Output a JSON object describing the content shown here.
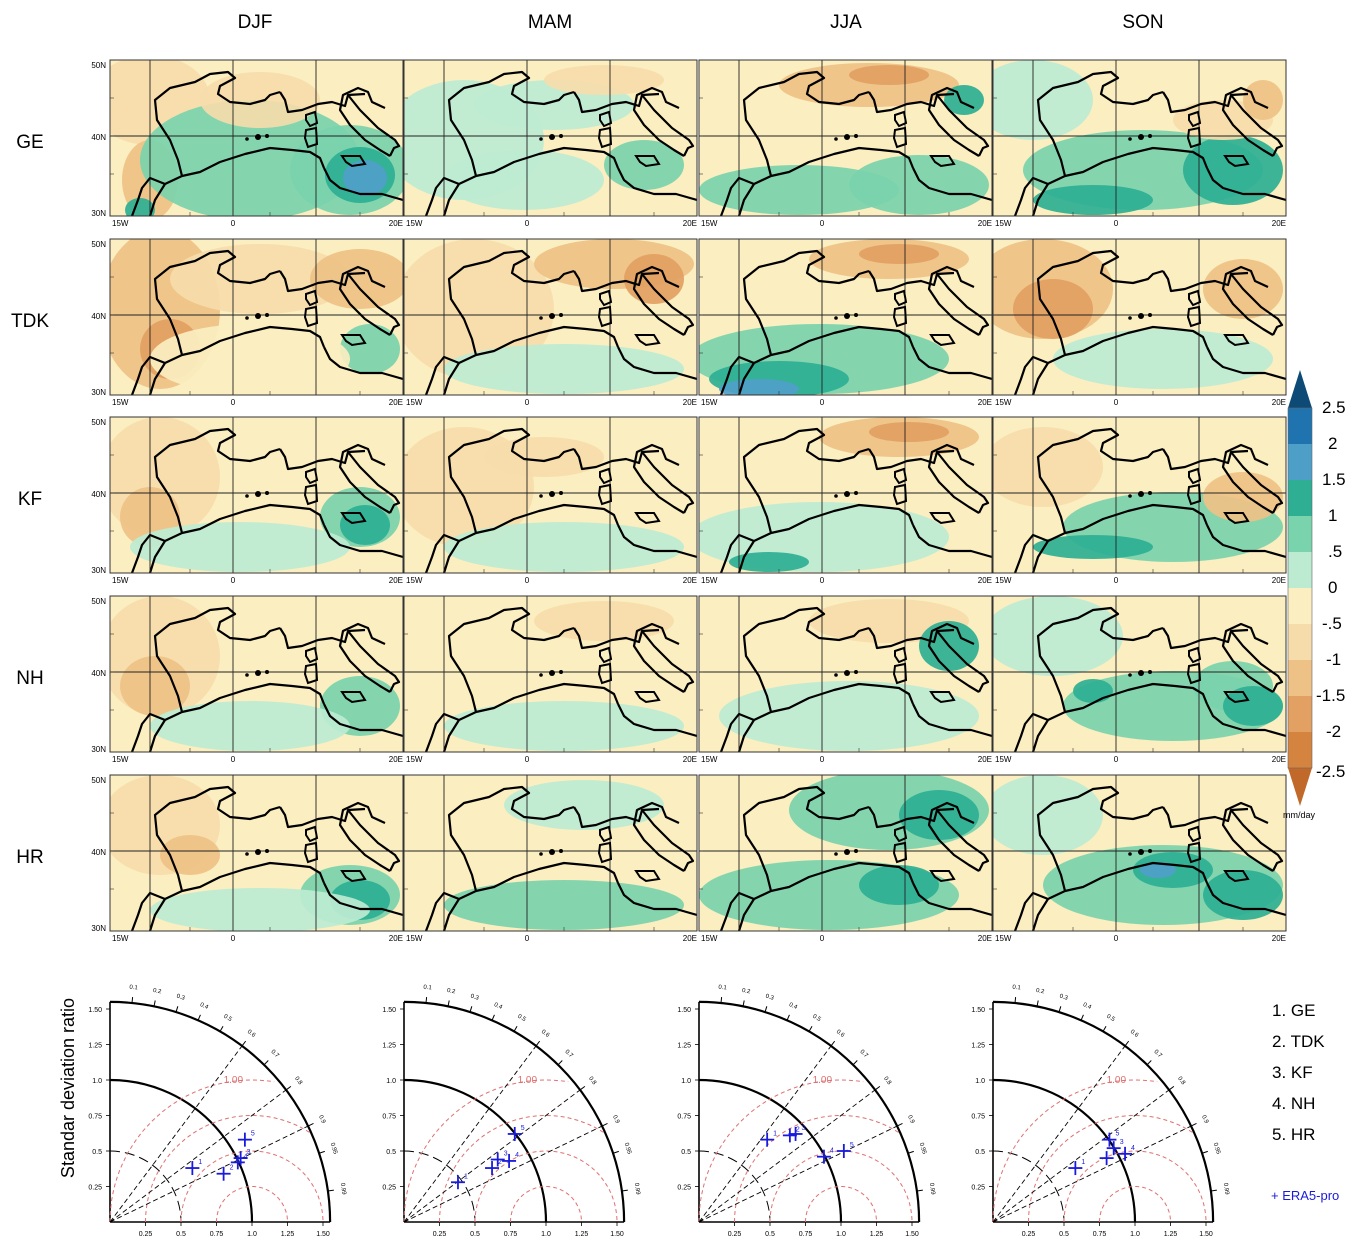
{
  "columns": [
    "DJF",
    "MAM",
    "JJA",
    "SON"
  ],
  "rows": [
    "GE",
    "TDK",
    "KF",
    "NH",
    "HR"
  ],
  "map_axes": {
    "lat_labels": [
      "50N",
      "40N",
      "30N"
    ],
    "lon_labels": [
      "15W",
      "0",
      "20E"
    ]
  },
  "colorbar": {
    "labels": [
      "2.5",
      "2",
      "1.5",
      "1",
      ".5",
      "0",
      "-.5",
      "-1",
      "-1.5",
      "-2",
      "-2.5"
    ],
    "unit": "mm/day",
    "colors": {
      "p25": "#0d4a76",
      "p2": "#1f73ae",
      "p15": "#4e9fc8",
      "p1": "#2eaf94",
      "p05": "#79d3ac",
      "p0": "#bdebd2",
      "n0": "#fbeec0",
      "n05": "#f6dcaa",
      "n1": "#eec186",
      "n15": "#e2a062",
      "n2": "#d4843f",
      "n25": "#c1692a"
    }
  },
  "taylor": {
    "ylabel": "Standar deviation ratio",
    "ref_label": "1.00",
    "radial_ticks": [
      "0.25",
      "0.5",
      "0.75",
      "1.0",
      "1.25",
      "1.50"
    ],
    "corr_ticks": [
      "0.1",
      "0.2",
      "0.3",
      "0.4",
      "0.5",
      "0.6",
      "0.7",
      "0.8",
      "0.9",
      "0.95",
      "0.99"
    ],
    "legend": [
      "1. GE",
      "2. TDK",
      "3. KF",
      "4. NH",
      "5. HR"
    ],
    "marker_legend": "+ ERA5-pro",
    "marker_color": "#1a1adc"
  },
  "chart_data": [
    {
      "type": "heatmap",
      "title": "",
      "rows": [
        "GE",
        "TDK",
        "KF",
        "NH",
        "HR"
      ],
      "columns": [
        "DJF",
        "MAM",
        "JJA",
        "SON"
      ],
      "colorbar_ticks": [
        -2.5,
        -2,
        -1.5,
        -1,
        -0.5,
        0,
        0.5,
        1,
        1.5,
        2,
        2.5
      ],
      "unit": "mm/day",
      "lat_range": [
        30,
        50
      ],
      "lon_range": [
        -15,
        20
      ]
    },
    {
      "type": "scatter",
      "subtype": "taylor",
      "panels": [
        {
          "season": "DJF",
          "points": [
            {
              "model": "1",
              "std_ratio": 0.7,
              "x": 0.58,
              "y": 0.38
            },
            {
              "model": "2",
              "std_ratio": 0.85,
              "x": 0.8,
              "y": 0.34
            },
            {
              "model": "3",
              "std_ratio": 0.98,
              "x": 0.92,
              "y": 0.45
            },
            {
              "model": "4",
              "std_ratio": 1.02,
              "x": 0.9,
              "y": 0.42
            },
            {
              "model": "5",
              "std_ratio": 1.1,
              "x": 0.95,
              "y": 0.58
            }
          ]
        },
        {
          "season": "MAM",
          "points": [
            {
              "model": "1",
              "std_ratio": 0.47,
              "x": 0.38,
              "y": 0.28
            },
            {
              "model": "2",
              "std_ratio": 0.73,
              "x": 0.62,
              "y": 0.38
            },
            {
              "model": "3",
              "std_ratio": 0.8,
              "x": 0.66,
              "y": 0.44
            },
            {
              "model": "4",
              "std_ratio": 0.85,
              "x": 0.74,
              "y": 0.43
            },
            {
              "model": "5",
              "std_ratio": 0.98,
              "x": 0.78,
              "y": 0.62
            }
          ]
        },
        {
          "season": "JJA",
          "points": [
            {
              "model": "1",
              "std_ratio": 0.78,
              "x": 0.48,
              "y": 0.58
            },
            {
              "model": "2",
              "std_ratio": 0.9,
              "x": 0.64,
              "y": 0.61
            },
            {
              "model": "3",
              "std_ratio": 0.93,
              "x": 0.68,
              "y": 0.62
            },
            {
              "model": "4",
              "std_ratio": 0.99,
              "x": 0.88,
              "y": 0.46
            },
            {
              "model": "5",
              "std_ratio": 1.14,
              "x": 1.02,
              "y": 0.5
            }
          ]
        },
        {
          "season": "SON",
          "points": [
            {
              "model": "1",
              "std_ratio": 0.69,
              "x": 0.58,
              "y": 0.38
            },
            {
              "model": "2",
              "std_ratio": 0.92,
              "x": 0.8,
              "y": 0.45
            },
            {
              "model": "3",
              "std_ratio": 1.0,
              "x": 0.85,
              "y": 0.52
            },
            {
              "model": "4",
              "std_ratio": 1.05,
              "x": 0.93,
              "y": 0.48
            },
            {
              "model": "5",
              "std_ratio": 0.95,
              "x": 0.82,
              "y": 0.58
            }
          ]
        }
      ],
      "ylabel": "Standar deviation ratio",
      "ylim": [
        0,
        1.5
      ]
    }
  ]
}
